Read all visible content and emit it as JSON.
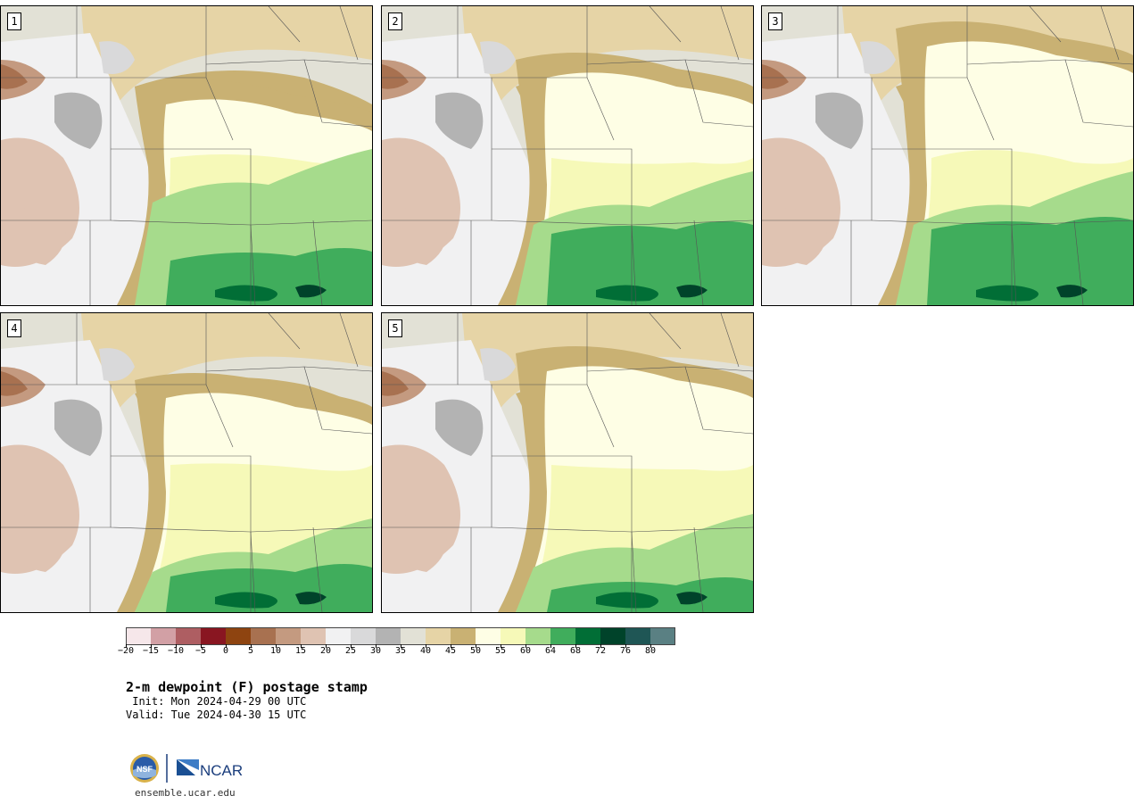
{
  "panels": [
    {
      "label": "1"
    },
    {
      "label": "2"
    },
    {
      "label": "3"
    },
    {
      "label": "4"
    },
    {
      "label": "5"
    }
  ],
  "colorbar": {
    "ticks": [
      "−20",
      "−15",
      "−10",
      "−5",
      "0",
      "5",
      "10",
      "15",
      "20",
      "25",
      "30",
      "35",
      "40",
      "45",
      "50",
      "55",
      "60",
      "64",
      "68",
      "72",
      "76",
      "80"
    ],
    "colors": [
      "#f6e7ea",
      "#d2a0a5",
      "#ae5e62",
      "#891621",
      "#8e4410",
      "#a87150",
      "#c49a80",
      "#dfc3b2",
      "#f1f1f2",
      "#d9d9da",
      "#b3b3b3",
      "#e2e1d6",
      "#e6d4a6",
      "#c9b173",
      "#fefee5",
      "#f6f9b8",
      "#a6db8c",
      "#40ad5c",
      "#016e36",
      "#00432a",
      "#1f5655",
      "#5a8083"
    ]
  },
  "title": "2-m dewpoint (F) postage stamp",
  "init": " Init: Mon 2024-04-29 00 UTC",
  "valid": "Valid: Tue 2024-04-30 15 UTC",
  "logo": {
    "left_text": "NSF",
    "right_text": "NCAR"
  },
  "site": "ensemble.ucar.edu"
}
